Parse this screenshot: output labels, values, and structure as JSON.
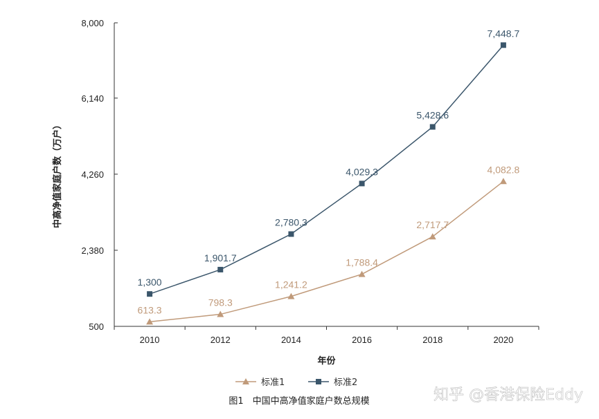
{
  "chart_data": {
    "type": "line",
    "title": "",
    "x": [
      "2010",
      "2012",
      "2014",
      "2016",
      "2018",
      "2020"
    ],
    "xlabel": "年份",
    "ylabel": "中高净值家庭户数（万户）",
    "yticks": [
      500,
      2380,
      4260,
      6140,
      8000
    ],
    "ytick_labels": [
      "500",
      "2,380",
      "4,260",
      "6,140",
      "8,000"
    ],
    "ylim": [
      500,
      8000
    ],
    "grid": false,
    "legend_position": "bottom-center",
    "series": [
      {
        "name": "标准1",
        "marker": "triangle",
        "color": "#c09a7a",
        "values": [
          613.3,
          798.3,
          1241.2,
          1788.4,
          2717.7,
          4082.8
        ],
        "labels": [
          "613.3",
          "798.3",
          "1,241.2",
          "1,788.4",
          "2,717.7",
          "4,082.8"
        ]
      },
      {
        "name": "标准2",
        "marker": "square",
        "color": "#3b566b",
        "values": [
          1300,
          1901.7,
          2780.3,
          4029.3,
          5428.6,
          7448.7
        ],
        "labels": [
          "1,300",
          "1,901.7",
          "2,780.3",
          "4,029.3",
          "5,428.6",
          "7,448.7"
        ]
      }
    ]
  },
  "caption": "图1　中国中高净值家庭户数总规模",
  "watermark": "知乎 @香港保险Eddy"
}
